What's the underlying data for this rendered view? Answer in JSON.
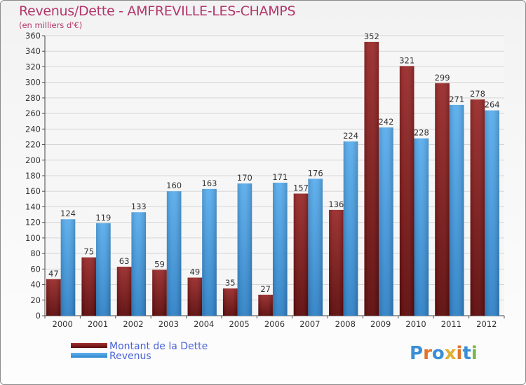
{
  "title": "Revenus/Dette - AMFREVILLE-LES-CHAMPS",
  "subtitle": "(en milliers d'€)",
  "legend": {
    "items": [
      {
        "label": "Montant de la Dette",
        "color": "#8b1a1a"
      },
      {
        "label": "Revenus",
        "color": "#3d97dc"
      }
    ]
  },
  "logo": {
    "text": "Proxiti",
    "colors": [
      "#3a8fd6",
      "#e0752a",
      "#3a8fd6",
      "#e0b030",
      "#e0752a",
      "#3a8fd6",
      "#7ab648"
    ]
  },
  "colors": {
    "dette": "#7a1414",
    "revenus": "#3d97dc",
    "title": "#b3366a",
    "grid": "#d0d0d0"
  },
  "chart_data": {
    "type": "bar",
    "categories": [
      "2000",
      "2001",
      "2002",
      "2003",
      "2004",
      "2005",
      "2006",
      "2007",
      "2008",
      "2009",
      "2010",
      "2011",
      "2012"
    ],
    "series": [
      {
        "name": "Montant de la Dette",
        "values": [
          47,
          75,
          63,
          59,
          49,
          35,
          27,
          157,
          136,
          352,
          321,
          299,
          278
        ]
      },
      {
        "name": "Revenus",
        "values": [
          124,
          119,
          133,
          160,
          163,
          170,
          171,
          176,
          224,
          242,
          228,
          271,
          264
        ]
      }
    ],
    "ylim": [
      0,
      360
    ],
    "yticks": [
      0,
      20,
      40,
      60,
      80,
      100,
      120,
      140,
      160,
      180,
      200,
      220,
      240,
      260,
      280,
      300,
      320,
      340,
      360
    ],
    "grid": true,
    "legend_position": "bottom-left"
  }
}
